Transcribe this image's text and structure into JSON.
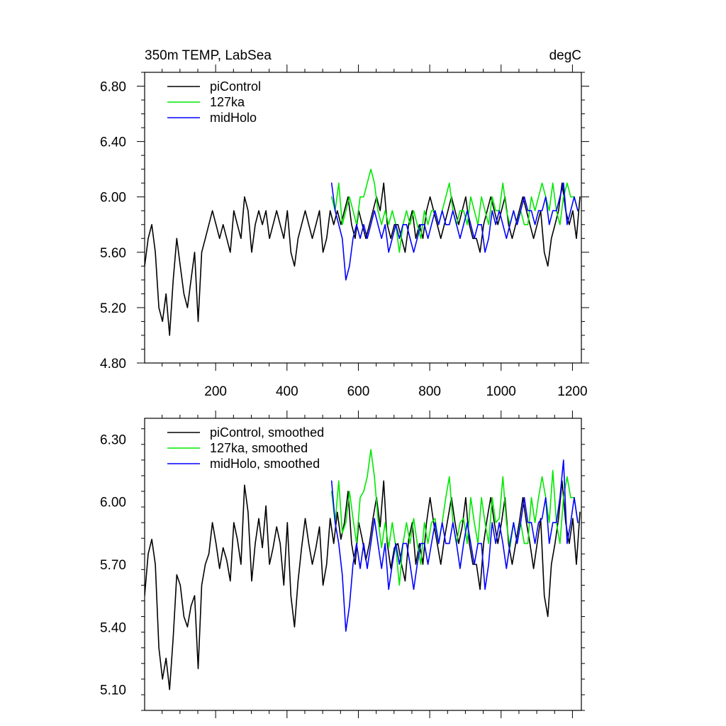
{
  "title_left": "350m TEMP, LabSea",
  "title_right": "degC",
  "colors": {
    "piControl": "#000000",
    "127ka": "#00e800",
    "midHolo": "#0000ff",
    "axes": "#000000",
    "background": "#ffffff"
  },
  "chart_data": [
    {
      "type": "line",
      "title": "350m TEMP, LabSea",
      "units": "degC",
      "xlim": [
        1,
        1225
      ],
      "ylim": [
        4.8,
        6.9
      ],
      "xticks": [
        200,
        400,
        600,
        800,
        1000,
        1200
      ],
      "xtick_labels": [
        "200",
        "400",
        "600",
        "800",
        "1000",
        "1200"
      ],
      "yticks": [
        4.8,
        5.2,
        5.6,
        6.0,
        6.4,
        6.8
      ],
      "ytick_labels": [
        "4.80",
        "5.20",
        "5.60",
        "6.00",
        "6.40",
        "6.80"
      ],
      "legend_position": "top-left",
      "series": [
        {
          "name": "piControl",
          "x_start": 1,
          "x_step": 10,
          "values": [
            5.5,
            5.7,
            5.8,
            5.6,
            5.2,
            5.1,
            5.3,
            5.0,
            5.4,
            5.7,
            5.5,
            5.3,
            5.2,
            5.4,
            5.6,
            5.1,
            5.6,
            5.7,
            5.8,
            5.9,
            5.8,
            5.7,
            5.8,
            5.7,
            5.6,
            5.9,
            5.8,
            5.7,
            6.0,
            5.9,
            5.6,
            5.8,
            5.9,
            5.8,
            5.9,
            5.7,
            5.8,
            5.9,
            5.8,
            5.7,
            5.9,
            5.6,
            5.5,
            5.7,
            5.8,
            5.9,
            5.8,
            5.7,
            5.8,
            5.9,
            5.6,
            5.7,
            5.9,
            5.8,
            5.9,
            5.8,
            5.9,
            6.0,
            5.8,
            5.7,
            5.9,
            5.8,
            5.7,
            5.8,
            5.9,
            6.0,
            5.9,
            6.1,
            5.8,
            5.7,
            5.8,
            5.8,
            5.7,
            5.6,
            5.8,
            5.9,
            5.7,
            5.8,
            5.7,
            5.9,
            6.0,
            5.9,
            5.8,
            5.7,
            5.8,
            5.9,
            6.0,
            5.9,
            5.8,
            5.9,
            6.0,
            5.8,
            5.7,
            5.7,
            5.6,
            5.8,
            5.9,
            6.0,
            5.9,
            5.8,
            5.9,
            6.0,
            5.8,
            5.7,
            5.8,
            5.9,
            6.0,
            5.9,
            5.8,
            5.7,
            5.8,
            5.9,
            5.6,
            5.5,
            5.7,
            5.8,
            5.9,
            6.1,
            5.9,
            5.8,
            5.9,
            5.7,
            6.0
          ]
        },
        {
          "name": "127ka",
          "x_start": 525,
          "x_step": 10,
          "values": [
            6.0,
            5.9,
            6.1,
            5.8,
            5.9,
            6.0,
            5.9,
            5.8,
            6.0,
            6.0,
            6.1,
            6.2,
            6.1,
            5.9,
            5.8,
            5.9,
            5.8,
            5.9,
            5.8,
            5.6,
            5.8,
            5.9,
            5.8,
            5.9,
            5.8,
            5.7,
            5.9,
            5.8,
            5.9,
            5.9,
            5.8,
            5.9,
            6.0,
            6.1,
            5.9,
            5.8,
            5.9,
            5.9,
            5.8,
            6.0,
            5.9,
            5.8,
            6.0,
            5.9,
            5.8,
            6.0,
            5.9,
            5.9,
            6.1,
            5.9,
            5.8,
            5.9,
            5.8,
            5.9,
            5.8,
            5.8,
            6.0,
            5.9,
            6.0,
            6.1,
            6.0,
            5.9,
            6.1,
            5.9,
            5.8,
            6.0,
            6.1,
            6.0,
            6.0,
            5.9
          ]
        },
        {
          "name": "midHolo",
          "x_start": 525,
          "x_step": 10,
          "values": [
            6.1,
            5.9,
            5.8,
            5.7,
            5.4,
            5.5,
            5.7,
            5.8,
            5.7,
            5.8,
            5.7,
            5.8,
            5.9,
            5.8,
            5.7,
            5.8,
            5.6,
            5.7,
            5.8,
            5.7,
            5.8,
            5.8,
            5.7,
            5.6,
            5.7,
            5.8,
            5.8,
            5.7,
            5.8,
            5.9,
            5.8,
            5.9,
            5.8,
            5.8,
            5.9,
            5.8,
            5.7,
            5.8,
            5.9,
            5.8,
            5.7,
            5.8,
            5.8,
            5.6,
            5.7,
            5.9,
            5.8,
            5.9,
            5.8,
            5.7,
            5.8,
            5.9,
            5.8,
            5.9,
            6.0,
            5.9,
            5.9,
            5.8,
            5.9,
            5.9,
            6.0,
            5.8,
            5.9,
            5.9,
            6.0,
            6.1,
            5.8,
            5.9,
            6.0,
            5.9
          ]
        }
      ]
    },
    {
      "type": "line",
      "xlim": [
        1,
        1225
      ],
      "ylim": [
        5.0,
        6.4
      ],
      "xticks": [
        200,
        400,
        600,
        800,
        1000,
        1200
      ],
      "yticks": [
        5.1,
        5.4,
        5.7,
        6.0,
        6.3
      ],
      "ytick_labels": [
        "5.10",
        "5.40",
        "5.70",
        "6.00",
        "6.30"
      ],
      "legend_position": "top-left",
      "series": [
        {
          "name": "piControl, smoothed",
          "x_start": 1,
          "x_step": 10,
          "values": [
            5.55,
            5.75,
            5.82,
            5.7,
            5.3,
            5.15,
            5.25,
            5.1,
            5.35,
            5.65,
            5.6,
            5.45,
            5.4,
            5.5,
            5.55,
            5.2,
            5.6,
            5.7,
            5.75,
            5.9,
            5.8,
            5.68,
            5.78,
            5.72,
            5.62,
            5.9,
            5.82,
            5.7,
            6.08,
            5.95,
            5.62,
            5.8,
            5.92,
            5.78,
            5.98,
            5.7,
            5.78,
            5.88,
            5.8,
            5.6,
            5.9,
            5.55,
            5.4,
            5.62,
            5.78,
            5.92,
            5.8,
            5.7,
            5.78,
            5.88,
            5.6,
            5.7,
            5.92,
            5.8,
            5.95,
            5.82,
            5.9,
            6.05,
            5.8,
            5.7,
            5.9,
            5.82,
            5.72,
            5.8,
            5.92,
            6.02,
            5.88,
            6.1,
            5.8,
            5.68,
            5.78,
            5.8,
            5.7,
            5.62,
            5.82,
            5.9,
            5.7,
            5.8,
            5.7,
            5.9,
            6.02,
            5.9,
            5.8,
            5.7,
            5.82,
            5.92,
            6.02,
            5.9,
            5.8,
            5.88,
            6.02,
            5.8,
            5.7,
            5.7,
            5.58,
            5.8,
            5.92,
            6.02,
            5.9,
            5.8,
            5.9,
            6.02,
            5.8,
            5.7,
            5.8,
            5.9,
            6.02,
            5.9,
            5.8,
            5.68,
            5.8,
            5.92,
            5.55,
            5.45,
            5.7,
            5.8,
            5.92,
            6.1,
            5.9,
            5.8,
            5.92,
            5.7,
            5.95
          ]
        },
        {
          "name": "127ka, smoothed",
          "x_start": 525,
          "x_step": 10,
          "values": [
            6.05,
            5.9,
            6.1,
            5.85,
            5.9,
            6.05,
            5.92,
            5.8,
            6.02,
            6.05,
            6.12,
            6.25,
            6.12,
            5.92,
            5.78,
            5.9,
            5.78,
            5.9,
            5.78,
            5.6,
            5.8,
            5.9,
            5.8,
            5.92,
            5.8,
            5.7,
            5.9,
            5.8,
            5.9,
            5.92,
            5.8,
            5.9,
            6.02,
            6.12,
            5.9,
            5.8,
            5.9,
            5.92,
            5.8,
            6.02,
            5.9,
            5.8,
            6.02,
            5.9,
            5.8,
            6.02,
            5.9,
            5.92,
            6.12,
            5.9,
            5.78,
            5.9,
            5.8,
            5.9,
            5.8,
            5.8,
            6.02,
            5.9,
            6.02,
            6.12,
            6.02,
            5.9,
            6.15,
            5.9,
            5.8,
            6.02,
            6.12,
            6.02,
            6.02,
            5.9
          ]
        },
        {
          "name": "midHolo, smoothed",
          "x_start": 525,
          "x_step": 10,
          "values": [
            6.1,
            5.9,
            5.8,
            5.65,
            5.38,
            5.5,
            5.7,
            5.8,
            5.68,
            5.8,
            5.68,
            5.8,
            5.92,
            5.8,
            5.68,
            5.8,
            5.58,
            5.7,
            5.8,
            5.7,
            5.8,
            5.8,
            5.7,
            5.58,
            5.7,
            5.8,
            5.8,
            5.7,
            5.8,
            5.9,
            5.8,
            5.9,
            5.8,
            5.8,
            5.9,
            5.8,
            5.68,
            5.8,
            5.9,
            5.8,
            5.7,
            5.8,
            5.8,
            5.58,
            5.7,
            5.9,
            5.8,
            5.9,
            5.8,
            5.68,
            5.8,
            5.9,
            5.8,
            5.9,
            6.02,
            5.9,
            5.9,
            5.8,
            5.9,
            5.92,
            6.02,
            5.8,
            5.9,
            5.9,
            6.02,
            6.2,
            5.8,
            5.9,
            6.02,
            5.9
          ]
        }
      ]
    }
  ]
}
